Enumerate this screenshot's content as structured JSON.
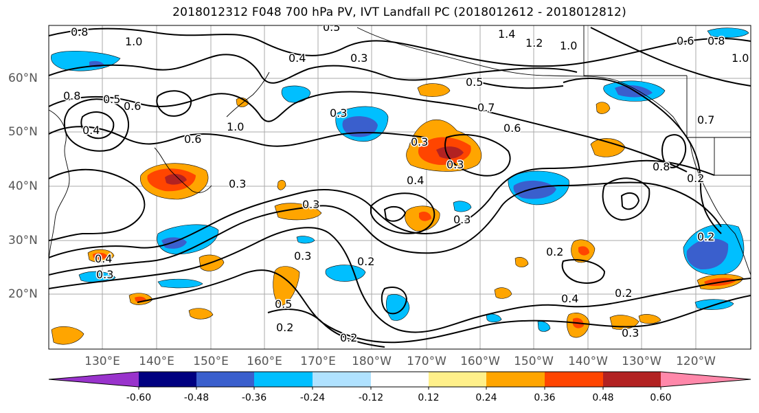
{
  "title": "2018012312 F048 700 hPa PV, IVT Landfall PC (2018012612 - 2018012812)",
  "lat_labels": [
    "60°N",
    "50°N",
    "40°N",
    "30°N",
    "20°N"
  ],
  "lon_labels": [
    "130°E",
    "140°E",
    "150°E",
    "160°E",
    "170°E",
    "180°W",
    "170°W",
    "160°W",
    "150°W",
    "140°W",
    "130°W",
    "120°W"
  ],
  "colorbar": {
    "colors": [
      "#9933cc",
      "#000080",
      "#3a5fcd",
      "#00bfff",
      "#b0e2ff",
      "#ffffff",
      "#fff08a",
      "#ffa500",
      "#ff4500",
      "#b22222",
      "#ff88aa"
    ],
    "tick_labels": [
      "-0.60",
      "-0.48",
      "-0.36",
      "-0.24",
      "-0.12",
      "0.12",
      "0.24",
      "0.36",
      "0.48",
      "0.60"
    ]
  },
  "contour_labels": [
    "0.8",
    "1.0",
    "0.5",
    "1.4",
    "1.2",
    "1.0",
    "0.6",
    "0.8",
    "1.0",
    "0.4",
    "0.3",
    "0.3",
    "0.5",
    "0.7",
    "0.8",
    "0.5",
    "0.6",
    "0.4",
    "1.0",
    "0.6",
    "0.3",
    "0.6",
    "0.3",
    "0.7",
    "0.4",
    "0.8",
    "0.3",
    "0.3",
    "0.2",
    "0.3",
    "0.2",
    "0.4",
    "0.3",
    "0.3",
    "0.2",
    "0.2",
    "0.4",
    "0.5",
    "0.2",
    "0.3",
    "0.2",
    "0.2"
  ]
}
